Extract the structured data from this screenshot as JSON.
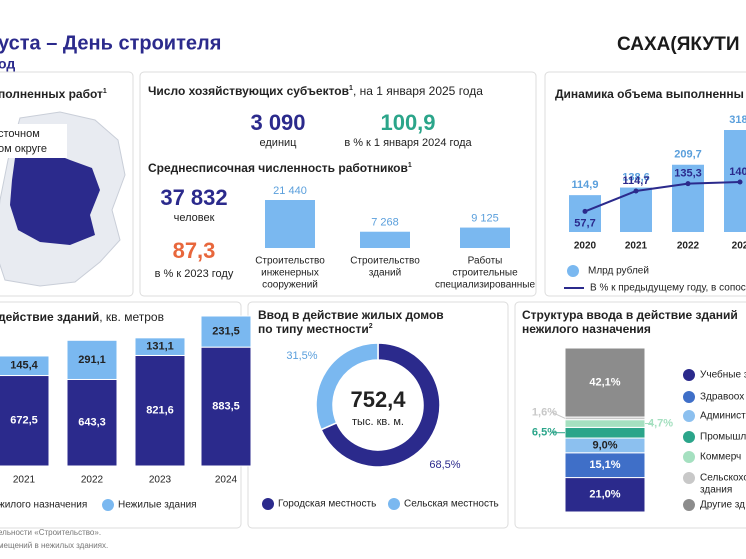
{
  "header": {
    "title": "уста – День строителя",
    "subtitle": "од",
    "logo": "САХА(ЯКУТИ"
  },
  "map_panel": {
    "title": "полненных работ",
    "title_note": "1",
    "label_lines": [
      "сточном",
      "ом округе"
    ]
  },
  "entities": {
    "title": "Число хозяйствующих субъектов",
    "title_note": "1",
    "title_rest": ", на 1 января 2025 года",
    "count": "3 090",
    "count_unit": "единиц",
    "index": "100,9",
    "index_unit": "в % к 1 января 2024 года"
  },
  "workers": {
    "title": "Среднесписочная численность работников",
    "title_note": "1",
    "count": "37 832",
    "count_unit": "человек",
    "index": "87,3",
    "index_unit": "в % к 2023 году"
  },
  "chart_data": [
    {
      "type": "bar",
      "color": "#7ab8f0",
      "categories": [
        [
          "Строительство",
          "инженерных",
          "сооружений"
        ],
        [
          "Строительство",
          "зданий"
        ],
        [
          "Работы",
          "строительные",
          "специализированные"
        ]
      ],
      "values": [
        21440,
        7268,
        9125
      ],
      "value_labels": [
        "21 440",
        "7 268",
        "9 125"
      ]
    },
    {
      "type": "bar_line",
      "title": "Динамика объема выполненны",
      "categories": [
        "2020",
        "2021",
        "2022",
        "202"
      ],
      "series": [
        {
          "name": "Млрд рублей",
          "color": "#7ab8f0",
          "values": [
            114.9,
            138.6,
            209.7,
            318
          ],
          "value_labels": [
            "114,9",
            "138,6",
            "209,7",
            "318,"
          ]
        },
        {
          "name": "В % к предыдущему году, в сопос",
          "color": "#2b2a8c",
          "axis": "y2",
          "values": [
            57.7,
            114.7,
            135.3,
            140
          ],
          "value_labels": [
            "57,7",
            "114,7",
            "135,3",
            "140,"
          ]
        }
      ]
    },
    {
      "type": "stacked_bar",
      "title": "действие зданий",
      "title_rest": ", кв. метров",
      "categories": [
        "2021",
        "2022",
        "2023",
        "2024"
      ],
      "series": [
        {
          "name": "жилого назначения",
          "color": "#2b2a8c",
          "values": [
            672.5,
            643.3,
            821.6,
            883.5
          ],
          "value_labels": [
            "672,5",
            "643,3",
            "821,6",
            "883,5"
          ]
        },
        {
          "name": "Нежилые здания",
          "color": "#7ab8f0",
          "values": [
            145.4,
            291.1,
            131.1,
            231.5
          ],
          "value_labels": [
            "145,4",
            "291,1",
            "131,1",
            "231,5"
          ]
        }
      ]
    },
    {
      "type": "donut",
      "title_lines": [
        "Ввод в действие жилых домов",
        "по типу местности"
      ],
      "title_note": "2",
      "center_value": "752,4",
      "center_unit": "тыс. кв. м.",
      "categories": [
        "Городская местность",
        "Сельская местность"
      ],
      "values": [
        68.5,
        31.5
      ],
      "value_labels": [
        "68,5%",
        "31,5%"
      ],
      "colors": [
        "#2b2a8c",
        "#7ab8f0"
      ]
    },
    {
      "type": "stacked_100",
      "title_lines": [
        "Структура ввода в действие зданий",
        "нежилого назначения"
      ],
      "categories": [
        [
          "Учебные з"
        ],
        [
          "Здравоох"
        ],
        [
          "Админист"
        ],
        [
          "Промышл"
        ],
        [
          "Коммерч"
        ],
        [
          "Сельскохо",
          "здания"
        ],
        [
          "Другие зд"
        ]
      ],
      "values": [
        21.0,
        15.1,
        9.0,
        6.5,
        4.7,
        1.6,
        42.1
      ],
      "value_labels": [
        "21,0%",
        "15,1%",
        "9,0%",
        "6,5%",
        "4,7%",
        "1,6%",
        "42,1%"
      ],
      "colors": [
        "#2b2a8c",
        "#3f6fc8",
        "#8cc0ef",
        "#2ba58a",
        "#a5e0c0",
        "#c8c8c8",
        "#8c8c8c"
      ]
    }
  ],
  "footnotes": [
    "ельности «Строительство».",
    "мещений в нежилых зданиях."
  ]
}
